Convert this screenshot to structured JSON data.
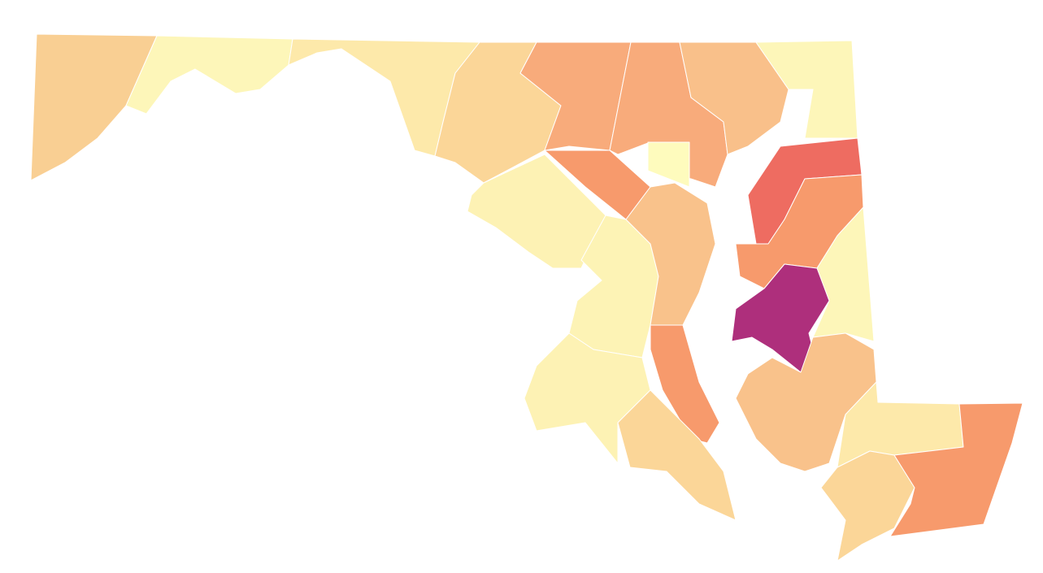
{
  "regions": [
    {
      "color": "#f9cf93"
    },
    {
      "color": "#fdf6b9"
    },
    {
      "color": "#fde9aa"
    },
    {
      "color": "#fbd698"
    },
    {
      "color": "#f8ab7b"
    },
    {
      "color": "#f8ab7b"
    },
    {
      "color": "#fefbbd"
    },
    {
      "color": "#f9c08a"
    },
    {
      "color": "#fdf6b9"
    },
    {
      "color": "#f79a6c"
    },
    {
      "color": "#fdf2b4"
    },
    {
      "color": "#fdf3b5"
    },
    {
      "color": "#f9c28b"
    },
    {
      "color": "#f79a6c"
    },
    {
      "color": "#fdf2b4"
    },
    {
      "color": "#fbd698"
    },
    {
      "color": "#ee6c61"
    },
    {
      "color": "#f79a6c"
    },
    {
      "color": "#fdf6b9"
    },
    {
      "color": "#ae2f7c"
    },
    {
      "color": "#f9c28b"
    },
    {
      "color": "#fde9aa"
    },
    {
      "color": "#fbd698"
    },
    {
      "color": "#f79a6c"
    }
  ]
}
